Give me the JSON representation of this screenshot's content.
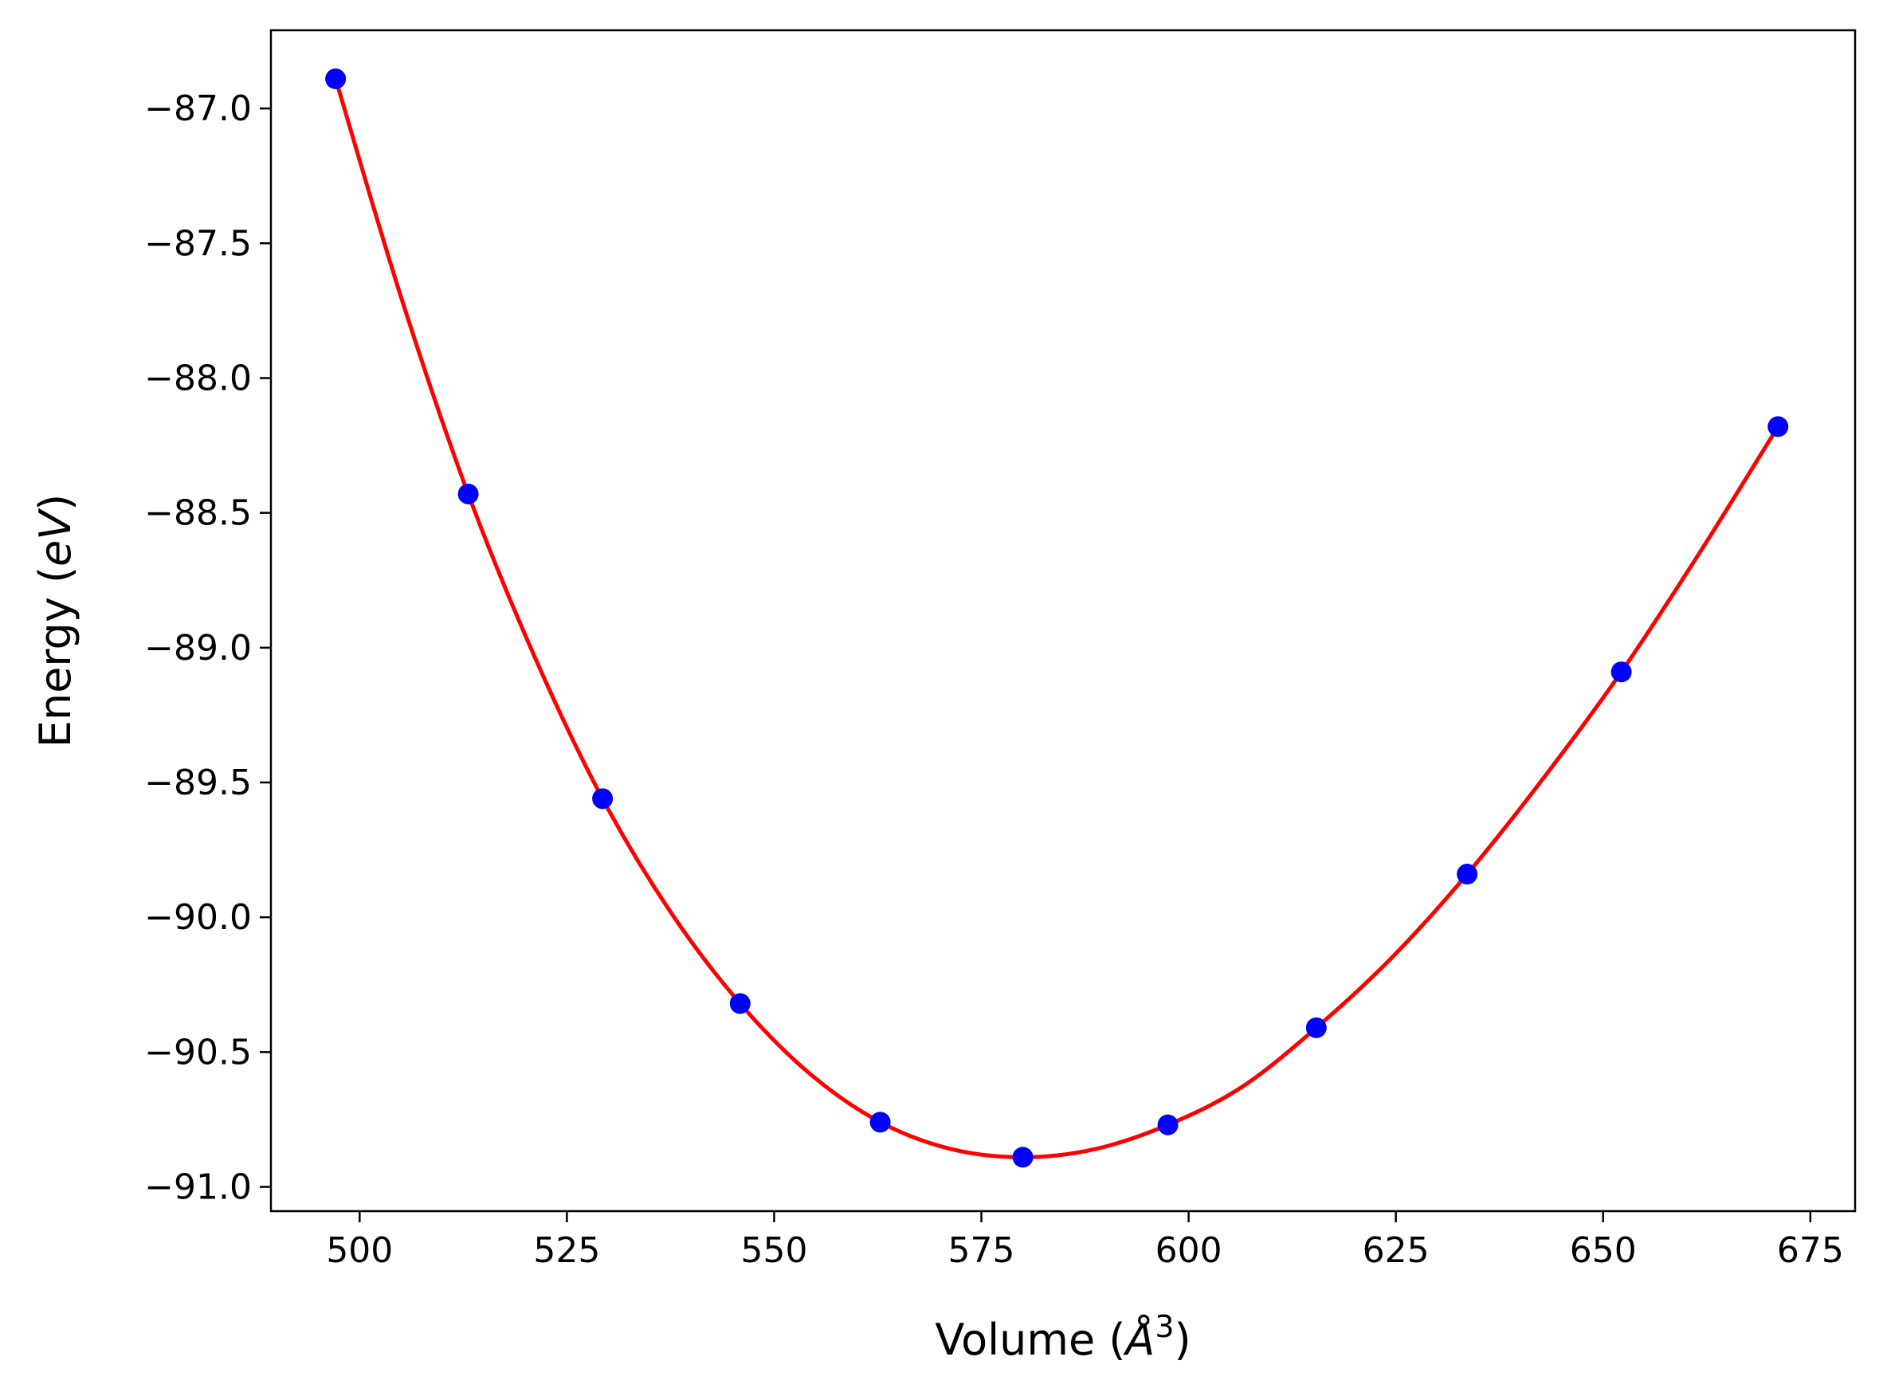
{
  "chart_data": {
    "type": "scatter",
    "xlabel": {
      "text": "Volume (",
      "italic": "Å",
      "sup": "3",
      "close": ")"
    },
    "ylabel": {
      "text": "Energy (",
      "italic": "eV",
      "close": ")"
    },
    "xlim": [
      489.3,
      680.4
    ],
    "ylim": [
      -91.09,
      -86.71
    ],
    "xticks": [
      500,
      525,
      550,
      575,
      600,
      625,
      650,
      675
    ],
    "xtick_labels": [
      "500",
      "525",
      "550",
      "575",
      "600",
      "625",
      "650",
      "675"
    ],
    "yticks": [
      -87.0,
      -87.5,
      -88.0,
      -88.5,
      -89.0,
      -89.5,
      -90.0,
      -90.5,
      -91.0
    ],
    "ytick_labels": [
      "−87.0",
      "−87.5",
      "−88.0",
      "−88.5",
      "−89.0",
      "−89.5",
      "−90.0",
      "−90.5",
      "−91.0"
    ],
    "grid": false,
    "legend": false,
    "series": [
      {
        "kind": "points",
        "color": "#0000ff",
        "x": [
          497.1,
          513.1,
          529.3,
          545.9,
          562.8,
          580.0,
          597.5,
          615.4,
          633.6,
          652.2,
          671.1
        ],
        "y": [
          -86.89,
          -88.43,
          -89.56,
          -90.32,
          -90.76,
          -90.89,
          -90.77,
          -90.41,
          -89.84,
          -89.09,
          -88.18
        ]
      },
      {
        "kind": "fit",
        "color": "#ff0000",
        "x": [
          497.1,
          505.0,
          513.1,
          521.2,
          529.3,
          537.5,
          545.9,
          554.3,
          562.8,
          571.4,
          580.0,
          588.7,
          597.5,
          606.4,
          615.4,
          624.5,
          633.6,
          642.9,
          652.2,
          661.6,
          671.1
        ],
        "y": [
          -86.89,
          -87.7,
          -88.43,
          -89.04,
          -89.56,
          -89.98,
          -90.32,
          -90.58,
          -90.76,
          -90.86,
          -90.89,
          -90.86,
          -90.77,
          -90.63,
          -90.41,
          -90.15,
          -89.84,
          -89.48,
          -89.09,
          -88.65,
          -88.18
        ]
      }
    ]
  }
}
